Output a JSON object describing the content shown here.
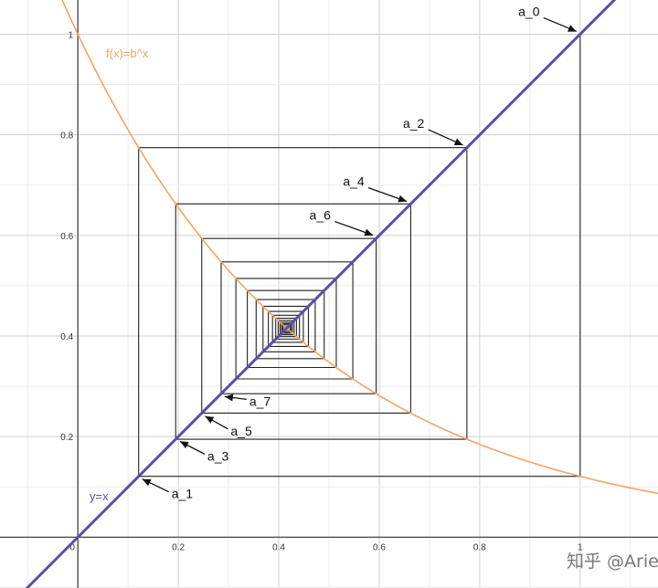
{
  "chart_data": {
    "type": "line",
    "title": "",
    "xlabel": "",
    "ylabel": "",
    "xlim": [
      -0.155,
      1.155
    ],
    "ylim": [
      -0.101,
      1.068
    ],
    "grid": true,
    "x_ticks": [
      0,
      0.2,
      0.4,
      0.6,
      0.8,
      1
    ],
    "y_ticks": [
      0.2,
      0.4,
      0.6,
      0.8,
      1
    ],
    "x_tick_labels": [
      "0",
      "0.2",
      "0.4",
      "0.6",
      "0.8",
      "1"
    ],
    "y_tick_labels": [
      "0.2",
      "0.4",
      "0.6",
      "0.8",
      "1"
    ],
    "base": 0.121,
    "series": [
      {
        "name": "f(x)=b^x",
        "kind": "function",
        "formula": "b^x",
        "color": "#f0a468"
      },
      {
        "name": "y=x",
        "kind": "function",
        "formula": "x",
        "color": "#5a4fa6"
      },
      {
        "name": "",
        "kind": "cobweb",
        "start": 1,
        "color": "#222222"
      }
    ],
    "annotations": [
      {
        "text": "a_0",
        "point": [
          1,
          1
        ]
      },
      {
        "text": "a_1",
        "point": [
          0.121,
          0.121
        ]
      },
      {
        "text": "a_2",
        "point": [
          0.774,
          0.774
        ]
      },
      {
        "text": "a_3",
        "point": [
          0.196,
          0.196
        ]
      },
      {
        "text": "a_4",
        "point": [
          0.662,
          0.662
        ]
      },
      {
        "text": "a_5",
        "point": [
          0.246,
          0.246
        ]
      },
      {
        "text": "a_6",
        "point": [
          0.595,
          0.595
        ]
      },
      {
        "text": "a_7",
        "point": [
          0.285,
          0.285
        ]
      }
    ]
  },
  "watermark": "知乎 @Aries"
}
